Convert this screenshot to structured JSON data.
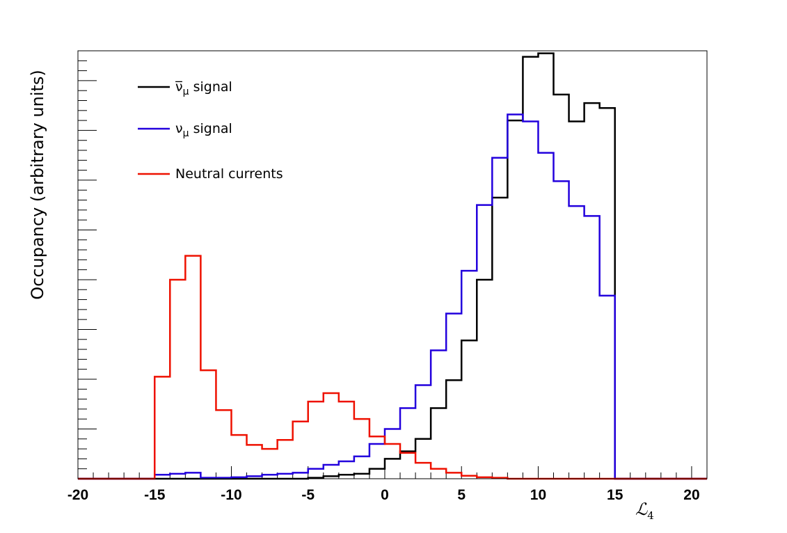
{
  "chart_data": {
    "type": "histogram",
    "title": "",
    "xlabel": "ℒ",
    "xlabel_subscript": "4",
    "ylabel": "Occupancy (arbitrary units)",
    "xlim": [
      -20,
      21
    ],
    "ylim": [
      0,
      8.6
    ],
    "x_ticks": [
      -20,
      -15,
      -10,
      -5,
      0,
      5,
      10,
      15,
      20
    ],
    "x_tick_labels": [
      "-20",
      "-15",
      "-10",
      "-5",
      "0",
      "5",
      "10",
      "15",
      "20"
    ],
    "bin_edges": [
      -15,
      -14,
      -13,
      -12,
      -11,
      -10,
      -9,
      -8,
      -7,
      -6,
      -5,
      -4,
      -3,
      -2,
      -1,
      0,
      1,
      2,
      3,
      4,
      5,
      6,
      7,
      8,
      9,
      10,
      11,
      12,
      13,
      14,
      15
    ],
    "legend_position": "top-left",
    "series": [
      {
        "name": "ν̅μ signal",
        "legend_symbol": "ν̅",
        "legend_subscript": "μ",
        "legend_suffix": " signal",
        "color": "#000000",
        "values": [
          0,
          0,
          0,
          0,
          0,
          0,
          0,
          0,
          0,
          0,
          0.02,
          0.05,
          0.08,
          0.1,
          0.2,
          0.4,
          0.55,
          0.8,
          1.42,
          1.98,
          2.78,
          4.0,
          5.65,
          7.2,
          8.48,
          8.55,
          7.72,
          7.18,
          7.55,
          7.45
        ]
      },
      {
        "name": "νμ signal",
        "legend_symbol": "ν",
        "legend_subscript": "μ",
        "legend_suffix": " signal",
        "color": "#2200dd",
        "values": [
          0.08,
          0.1,
          0.12,
          0.02,
          0.02,
          0.03,
          0.05,
          0.08,
          0.1,
          0.12,
          0.2,
          0.28,
          0.35,
          0.45,
          0.7,
          1.0,
          1.42,
          1.88,
          2.58,
          3.32,
          4.18,
          5.5,
          6.45,
          7.32,
          7.18,
          6.55,
          5.98,
          5.48,
          5.28,
          3.68
        ]
      },
      {
        "name": "Neutral currents",
        "legend_symbol": "Neutral currents",
        "legend_subscript": "",
        "legend_suffix": "",
        "color": "#ee1100",
        "values": [
          2.05,
          4.0,
          4.48,
          2.18,
          1.38,
          0.88,
          0.68,
          0.6,
          0.78,
          1.15,
          1.55,
          1.72,
          1.55,
          1.2,
          0.85,
          0.7,
          0.52,
          0.32,
          0.2,
          0.12,
          0.06,
          0.03,
          0.02,
          0,
          0,
          0,
          0,
          0,
          0,
          0
        ]
      }
    ]
  }
}
